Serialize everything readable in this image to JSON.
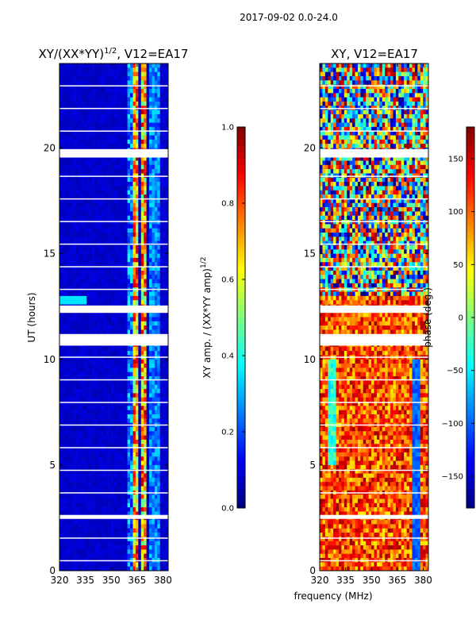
{
  "suptitle": "2017-09-02 0.0-24.0",
  "colors": {
    "background": "#ffffff",
    "flagged_rows": "#ffffff",
    "jet": [
      "#00007f",
      "#0000ff",
      "#007fff",
      "#00ffff",
      "#7fff7f",
      "#ffff00",
      "#ff7f00",
      "#ff0000",
      "#7f0000"
    ]
  },
  "chart_data": [
    {
      "type": "heatmap",
      "title_main": "XY/(XX*YY)",
      "title_sup": "1/2",
      "title_tail": ", V12=EA17",
      "xlabel": "",
      "ylabel": "UT (hours)",
      "xlim": [
        320,
        383
      ],
      "ylim": [
        0,
        24
      ],
      "xticks": [
        320,
        335,
        350,
        365,
        380
      ],
      "yticks": [
        0,
        5,
        10,
        15,
        20
      ],
      "colormap": "jet",
      "clim": [
        0.0,
        1.0
      ],
      "colorbar": {
        "label_main": "XY amp. / (XX*YY amp)",
        "label_sup": "1/2",
        "ticks": [
          "0.0",
          "0.2",
          "0.4",
          "0.6",
          "0.8",
          "1.0"
        ],
        "tick_values": [
          0.0,
          0.2,
          0.4,
          0.6,
          0.8,
          1.0
        ]
      },
      "gap_hours": [
        [
          10.65,
          11.15
        ],
        [
          12.2,
          12.55
        ],
        [
          19.55,
          19.95
        ],
        [
          2.45,
          2.6
        ]
      ],
      "hot_band_mhz": [
        [
          363,
          365.5
        ],
        [
          367,
          370
        ]
      ],
      "typical_value": 0.05
    },
    {
      "type": "heatmap",
      "title_main": "XY, V12=EA17",
      "xlabel": "frequency (MHz)",
      "ylabel": "",
      "xlim": [
        320,
        383
      ],
      "ylim": [
        0,
        24
      ],
      "xticks": [
        320,
        335,
        350,
        365,
        380
      ],
      "yticks": [
        0,
        5,
        10,
        15,
        20
      ],
      "colormap": "jet",
      "clim": [
        -180,
        180
      ],
      "colorbar": {
        "label_main": "phase (deg.)",
        "ticks": [
          "150",
          "100",
          "50",
          "0",
          "−50",
          "−100",
          "−150"
        ],
        "tick_values": [
          150,
          100,
          50,
          0,
          -50,
          -100,
          -150
        ]
      },
      "gap_hours": [
        [
          10.65,
          11.15
        ],
        [
          12.2,
          12.55
        ],
        [
          19.55,
          19.95
        ],
        [
          2.45,
          2.6
        ]
      ],
      "typical_value": 110
    }
  ]
}
